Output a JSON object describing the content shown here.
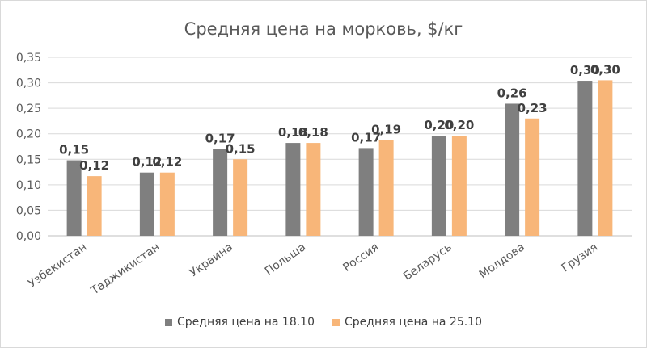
{
  "chart_data": {
    "type": "bar",
    "title": "Средняя цена на морковь, $/кг",
    "categories": [
      "Узбекистан",
      "Таджикистан",
      "Украина",
      "Польша",
      "Россия",
      "Беларусь",
      "Молдова",
      "Грузия"
    ],
    "series": [
      {
        "name": "Средняя цена на 18.10",
        "color": "#7f7f7f",
        "values": [
          0.148,
          0.124,
          0.17,
          0.182,
          0.172,
          0.196,
          0.259,
          0.304
        ],
        "labels": [
          "0,15",
          "0,12",
          "0,17",
          "0,18",
          "0,17",
          "0,20",
          "0,26",
          "0,30"
        ]
      },
      {
        "name": "Средняя цена на 25.10",
        "color": "#f8b679",
        "values": [
          0.117,
          0.124,
          0.15,
          0.182,
          0.188,
          0.196,
          0.23,
          0.305
        ],
        "labels": [
          "0,12",
          "0,12",
          "0,15",
          "0,18",
          "0,19",
          "0,20",
          "0,23",
          "0,30"
        ]
      }
    ],
    "yticks": [
      "0,00",
      "0,05",
      "0,10",
      "0,15",
      "0,20",
      "0,25",
      "0,30",
      "0,35"
    ],
    "ylim": [
      0,
      0.35
    ],
    "grid": true,
    "legend_position": "bottom",
    "xlabel": "",
    "ylabel": ""
  }
}
